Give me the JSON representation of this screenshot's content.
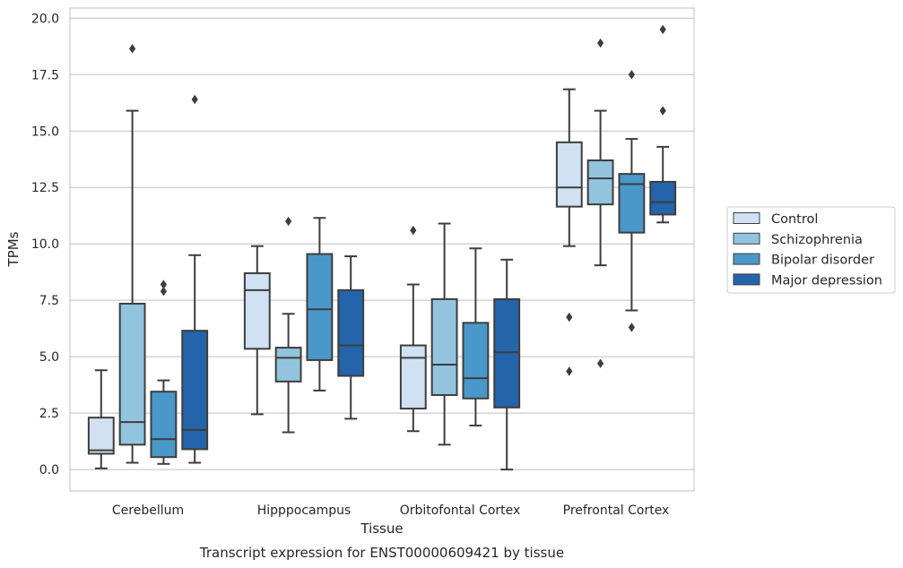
{
  "chart_data": {
    "type": "box",
    "title": "Transcript expression for ENST00000609421 by tissue",
    "xlabel": "Tissue",
    "ylabel": "TPMs",
    "ylim": [
      -0.95,
      20.45
    ],
    "yticks": [
      "0.0",
      "2.5",
      "5.0",
      "7.5",
      "10.0",
      "12.5",
      "15.0",
      "17.5",
      "20.0"
    ],
    "grid": true,
    "legend_position": "right",
    "categories": [
      "Cerebellum",
      "Hipppocampus",
      "Orbitofontal Cortex",
      "Prefrontal Cortex"
    ],
    "series": [
      {
        "name": "Control",
        "color": "#cfe1f2",
        "boxes": [
          {
            "whisker_low": 0.05,
            "q1": 0.7,
            "median": 0.85,
            "q3": 2.3,
            "whisker_high": 4.4,
            "outliers": []
          },
          {
            "whisker_low": 2.45,
            "q1": 5.35,
            "median": 7.95,
            "q3": 8.7,
            "whisker_high": 9.9,
            "outliers": []
          },
          {
            "whisker_low": 1.7,
            "q1": 2.7,
            "median": 4.95,
            "q3": 5.5,
            "whisker_high": 8.2,
            "outliers": [
              10.6
            ]
          },
          {
            "whisker_low": 9.9,
            "q1": 11.65,
            "median": 12.5,
            "q3": 14.5,
            "whisker_high": 16.85,
            "outliers": [
              6.75,
              4.35
            ]
          }
        ]
      },
      {
        "name": "Schizophrenia",
        "color": "#93c4de",
        "boxes": [
          {
            "whisker_low": 0.3,
            "q1": 1.1,
            "median": 2.1,
            "q3": 7.35,
            "whisker_high": 15.9,
            "outliers": [
              18.65
            ]
          },
          {
            "whisker_low": 1.65,
            "q1": 3.9,
            "median": 4.95,
            "q3": 5.4,
            "whisker_high": 6.9,
            "outliers": [
              11.0
            ]
          },
          {
            "whisker_low": 1.1,
            "q1": 3.3,
            "median": 4.65,
            "q3": 7.55,
            "whisker_high": 10.9,
            "outliers": []
          },
          {
            "whisker_low": 9.05,
            "q1": 11.75,
            "median": 12.9,
            "q3": 13.7,
            "whisker_high": 15.9,
            "outliers": [
              18.9,
              4.7
            ]
          }
        ]
      },
      {
        "name": "Bipolar disorder",
        "color": "#4a98c9",
        "boxes": [
          {
            "whisker_low": 0.25,
            "q1": 0.55,
            "median": 1.35,
            "q3": 3.45,
            "whisker_high": 3.95,
            "outliers": [
              8.2,
              7.9
            ]
          },
          {
            "whisker_low": 3.5,
            "q1": 4.85,
            "median": 7.1,
            "q3": 9.55,
            "whisker_high": 11.15,
            "outliers": []
          },
          {
            "whisker_low": 1.95,
            "q1": 3.15,
            "median": 4.05,
            "q3": 6.5,
            "whisker_high": 9.8,
            "outliers": []
          },
          {
            "whisker_low": 7.05,
            "q1": 10.5,
            "median": 12.65,
            "q3": 13.1,
            "whisker_high": 14.65,
            "outliers": [
              17.5,
              6.3
            ]
          }
        ]
      },
      {
        "name": "Major depression",
        "color": "#2464ab",
        "boxes": [
          {
            "whisker_low": 0.3,
            "q1": 0.9,
            "median": 1.75,
            "q3": 6.15,
            "whisker_high": 9.5,
            "outliers": [
              16.4
            ]
          },
          {
            "whisker_low": 2.25,
            "q1": 4.15,
            "median": 5.5,
            "q3": 7.95,
            "whisker_high": 9.45,
            "outliers": []
          },
          {
            "whisker_low": 0.0,
            "q1": 2.75,
            "median": 5.2,
            "q3": 7.55,
            "whisker_high": 9.3,
            "outliers": []
          },
          {
            "whisker_low": 10.95,
            "q1": 11.3,
            "median": 11.85,
            "q3": 12.75,
            "whisker_high": 14.3,
            "outliers": [
              19.5,
              15.9
            ]
          }
        ]
      }
    ]
  }
}
